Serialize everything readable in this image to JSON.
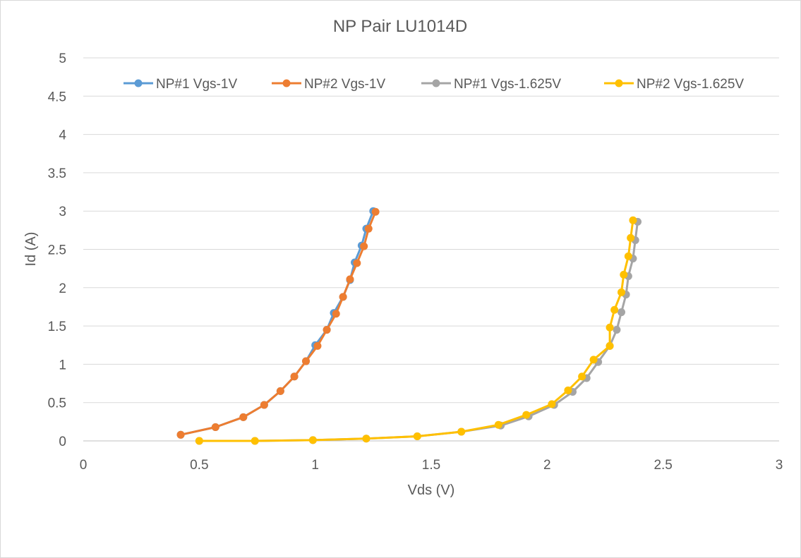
{
  "chart_data": {
    "type": "line",
    "title": "NP Pair LU1014D",
    "xlabel": "Vds (V)",
    "ylabel": "Id (A)",
    "xlim": [
      0,
      3
    ],
    "ylim": [
      0,
      5
    ],
    "x_ticks": [
      "0",
      "0.5",
      "1",
      "1.5",
      "2",
      "2.5",
      "3"
    ],
    "y_ticks": [
      "0",
      "0.5",
      "1",
      "1.5",
      "2",
      "2.5",
      "3",
      "3.5",
      "4",
      "4.5",
      "5"
    ],
    "grid": "horizontal",
    "legend_position": "top",
    "series": [
      {
        "name": "NP#1 Vgs-1V",
        "color": "#5b9bd5",
        "points": [
          [
            0.42,
            0.08
          ],
          [
            0.57,
            0.18
          ],
          [
            0.69,
            0.31
          ],
          [
            0.78,
            0.47
          ],
          [
            0.85,
            0.65
          ],
          [
            0.91,
            0.84
          ],
          [
            0.96,
            1.04
          ],
          [
            1.0,
            1.25
          ],
          [
            1.05,
            1.45
          ],
          [
            1.08,
            1.67
          ],
          [
            1.12,
            1.88
          ],
          [
            1.15,
            2.1
          ],
          [
            1.17,
            2.33
          ],
          [
            1.2,
            2.55
          ],
          [
            1.22,
            2.77
          ],
          [
            1.25,
            3.0
          ]
        ]
      },
      {
        "name": "NP#2 Vgs-1V",
        "color": "#ed7d31",
        "points": [
          [
            0.42,
            0.08
          ],
          [
            0.57,
            0.18
          ],
          [
            0.69,
            0.31
          ],
          [
            0.78,
            0.47
          ],
          [
            0.85,
            0.65
          ],
          [
            0.91,
            0.84
          ],
          [
            0.96,
            1.04
          ],
          [
            1.01,
            1.24
          ],
          [
            1.05,
            1.45
          ],
          [
            1.09,
            1.66
          ],
          [
            1.12,
            1.88
          ],
          [
            1.15,
            2.11
          ],
          [
            1.18,
            2.32
          ],
          [
            1.21,
            2.54
          ],
          [
            1.23,
            2.77
          ],
          [
            1.26,
            2.99
          ]
        ]
      },
      {
        "name": "NP#1 Vgs-1.625V",
        "color": "#a5a5a5",
        "points": [
          [
            0.5,
            0.0
          ],
          [
            0.74,
            0.0
          ],
          [
            0.99,
            0.01
          ],
          [
            1.22,
            0.03
          ],
          [
            1.44,
            0.06
          ],
          [
            1.63,
            0.12
          ],
          [
            1.8,
            0.2
          ],
          [
            1.92,
            0.32
          ],
          [
            2.03,
            0.47
          ],
          [
            2.11,
            0.64
          ],
          [
            2.17,
            0.82
          ],
          [
            2.22,
            1.03
          ],
          [
            2.27,
            1.24
          ],
          [
            2.3,
            1.45
          ],
          [
            2.32,
            1.68
          ],
          [
            2.34,
            1.91
          ],
          [
            2.35,
            2.15
          ],
          [
            2.37,
            2.38
          ],
          [
            2.38,
            2.62
          ],
          [
            2.39,
            2.86
          ]
        ]
      },
      {
        "name": "NP#2 Vgs-1.625V",
        "color": "#ffc000",
        "points": [
          [
            0.5,
            0.0
          ],
          [
            0.74,
            0.0
          ],
          [
            0.99,
            0.01
          ],
          [
            1.22,
            0.03
          ],
          [
            1.44,
            0.06
          ],
          [
            1.63,
            0.12
          ],
          [
            1.79,
            0.21
          ],
          [
            1.91,
            0.34
          ],
          [
            2.02,
            0.48
          ],
          [
            2.09,
            0.66
          ],
          [
            2.15,
            0.84
          ],
          [
            2.2,
            1.06
          ],
          [
            2.27,
            1.24
          ],
          [
            2.27,
            1.48
          ],
          [
            2.29,
            1.71
          ],
          [
            2.32,
            1.94
          ],
          [
            2.33,
            2.17
          ],
          [
            2.35,
            2.41
          ],
          [
            2.36,
            2.65
          ],
          [
            2.37,
            2.88
          ]
        ]
      }
    ]
  }
}
